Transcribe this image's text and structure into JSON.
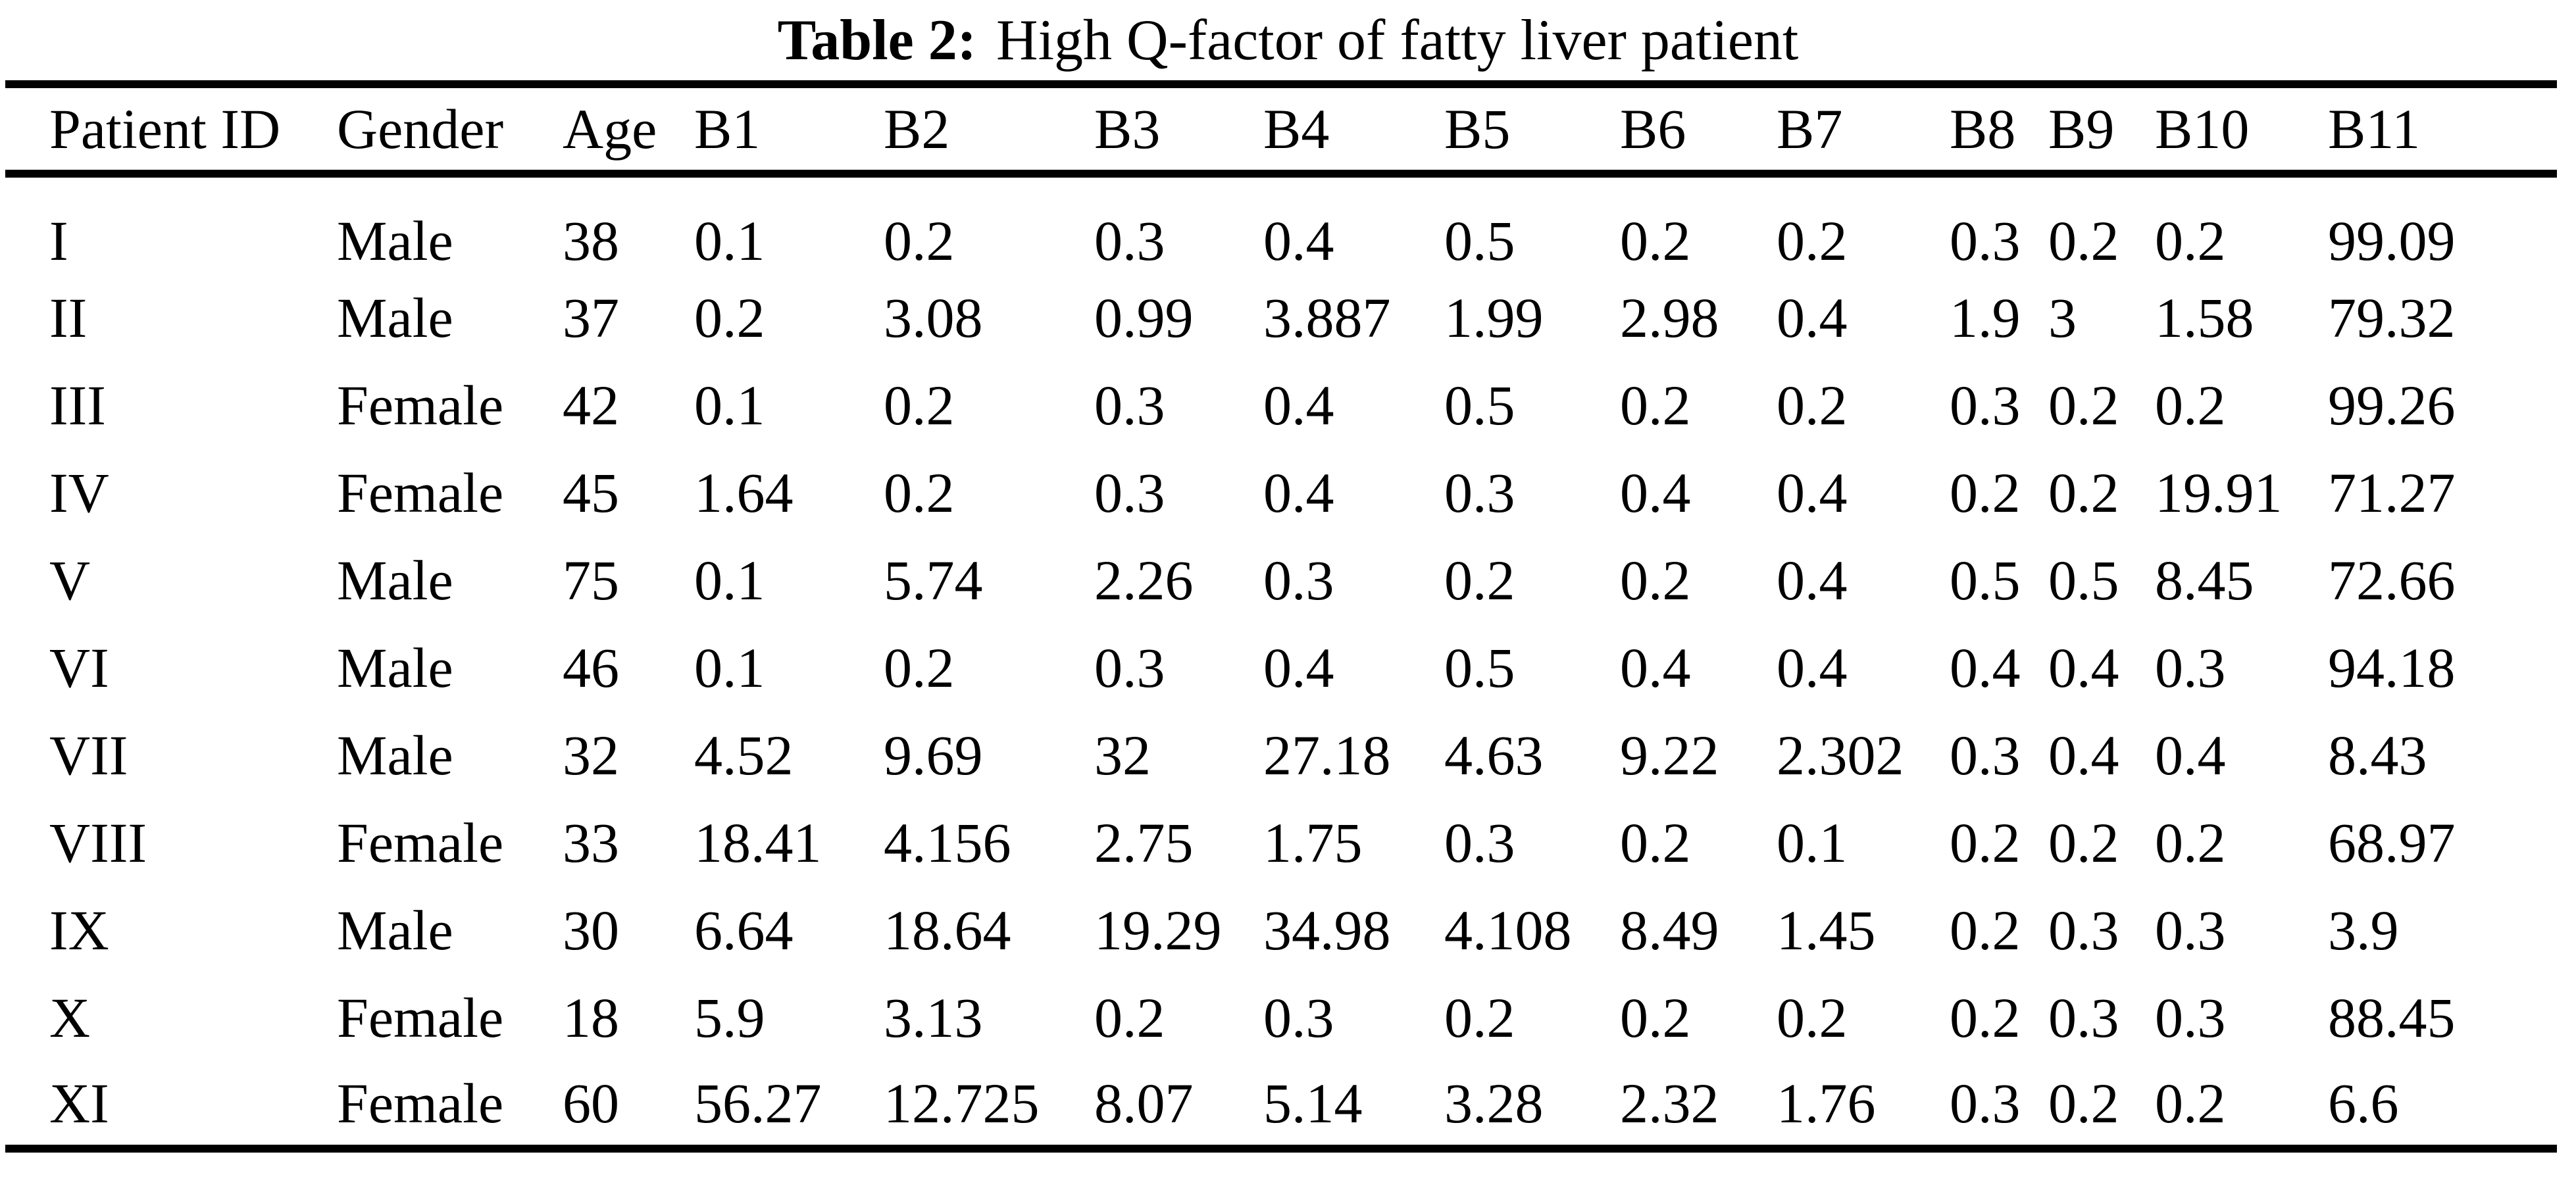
{
  "caption": {
    "label": "Table 2:",
    "text": "High Q-factor of fatty liver patient"
  },
  "table": {
    "headers": [
      "Patient ID",
      "Gender",
      "Age",
      "B1",
      "B2",
      "B3",
      "B4",
      "B5",
      "B6",
      "B7",
      "B8",
      "B9",
      "B10",
      "B11"
    ],
    "rows": [
      [
        "I",
        "Male",
        "38",
        "0.1",
        "0.2",
        "0.3",
        "0.4",
        "0.5",
        "0.2",
        "0.2",
        "0.3",
        "0.2",
        "0.2",
        "99.09"
      ],
      [
        "II",
        "Male",
        "37",
        "0.2",
        "3.08",
        "0.99",
        "3.887",
        "1.99",
        "2.98",
        "0.4",
        "1.9",
        "3",
        "1.58",
        "79.32"
      ],
      [
        "III",
        "Female",
        "42",
        "0.1",
        "0.2",
        "0.3",
        "0.4",
        "0.5",
        "0.2",
        "0.2",
        "0.3",
        "0.2",
        "0.2",
        "99.26"
      ],
      [
        "IV",
        "Female",
        "45",
        "1.64",
        "0.2",
        "0.3",
        "0.4",
        "0.3",
        "0.4",
        "0.4",
        "0.2",
        "0.2",
        "19.91",
        "71.27"
      ],
      [
        "V",
        "Male",
        "75",
        "0.1",
        "5.74",
        "2.26",
        "0.3",
        "0.2",
        "0.2",
        "0.4",
        "0.5",
        "0.5",
        "8.45",
        "72.66"
      ],
      [
        "VI",
        "Male",
        "46",
        "0.1",
        "0.2",
        "0.3",
        "0.4",
        "0.5",
        "0.4",
        "0.4",
        "0.4",
        "0.4",
        "0.3",
        "94.18"
      ],
      [
        "VII",
        "Male",
        "32",
        "4.52",
        "9.69",
        "32",
        "27.18",
        "4.63",
        "9.22",
        "2.302",
        "0.3",
        "0.4",
        "0.4",
        "8.43"
      ],
      [
        "VIII",
        "Female",
        "33",
        "18.41",
        "4.156",
        "2.75",
        "1.75",
        "0.3",
        "0.2",
        "0.1",
        "0.2",
        "0.2",
        "0.2",
        "68.97"
      ],
      [
        "IX",
        "Male",
        "30",
        "6.64",
        "18.64",
        "19.29",
        "34.98",
        "4.108",
        "8.49",
        "1.45",
        "0.2",
        "0.3",
        "0.3",
        "3.9"
      ],
      [
        "X",
        "Female",
        "18",
        "5.9",
        "3.13",
        "0.2",
        "0.3",
        "0.2",
        "0.2",
        "0.2",
        "0.2",
        "0.3",
        "0.3",
        "88.45"
      ],
      [
        "XI",
        "Female",
        "60",
        "56.27",
        "12.725",
        "8.07",
        "5.14",
        "3.28",
        "2.32",
        "1.76",
        "0.3",
        "0.2",
        "0.2",
        "6.6"
      ]
    ]
  },
  "colors": {
    "text": "#000000",
    "background": "#ffffff",
    "rule": "#000000"
  }
}
